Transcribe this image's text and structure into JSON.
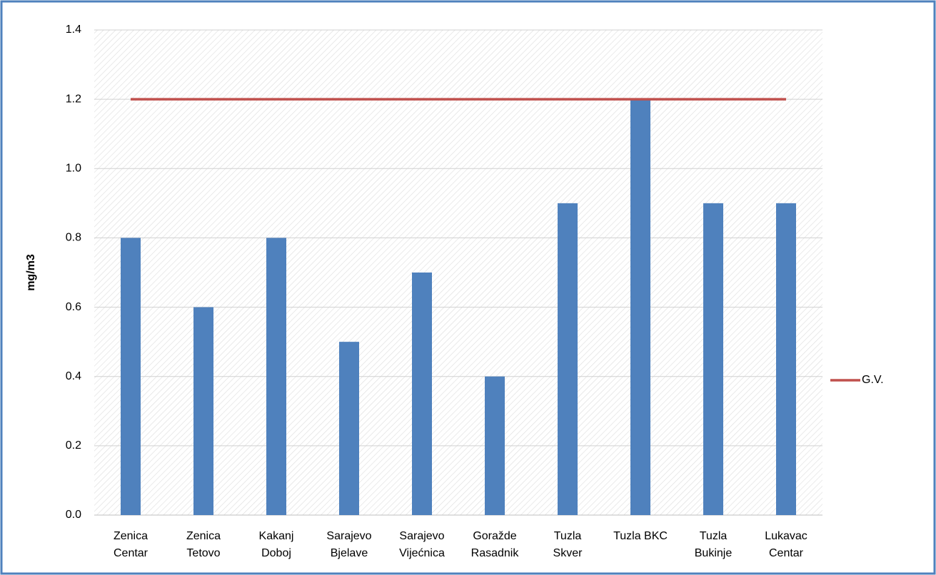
{
  "chart_data": {
    "type": "bar",
    "y_label": "mg/m3",
    "categories": [
      [
        "Zenica",
        "Centar"
      ],
      [
        "Zenica",
        "Tetovo"
      ],
      [
        "Kakanj",
        "Doboj"
      ],
      [
        "Sarajevo",
        "Bjelave"
      ],
      [
        "Sarajevo",
        "Vijećnica"
      ],
      [
        "Goražde",
        "Rasadnik"
      ],
      [
        "Tuzla",
        "Skver"
      ],
      [
        "Tuzla BKC"
      ],
      [
        "Tuzla",
        "Bukinje"
      ],
      [
        "Lukavac",
        "Centar"
      ]
    ],
    "series": [
      {
        "type": "bar",
        "color": "#4f81bd",
        "values": [
          0.8,
          0.6,
          0.8,
          0.5,
          0.7,
          0.4,
          0.9,
          1.2,
          0.9,
          0.9
        ]
      },
      {
        "type": "line",
        "name": "G.V.",
        "color": "#c0504d",
        "values": [
          1.2,
          1.2,
          1.2,
          1.2,
          1.2,
          1.2,
          1.2,
          1.2,
          1.2,
          1.2
        ]
      }
    ],
    "ylim": [
      0,
      1.4
    ],
    "yticks": [
      {
        "value": 0,
        "label": "0.0"
      },
      0.2,
      0.4,
      0.6,
      0.8,
      {
        "value": 1,
        "label": "1.0"
      },
      1.2,
      1.4
    ],
    "grid": true,
    "legend": "right"
  }
}
